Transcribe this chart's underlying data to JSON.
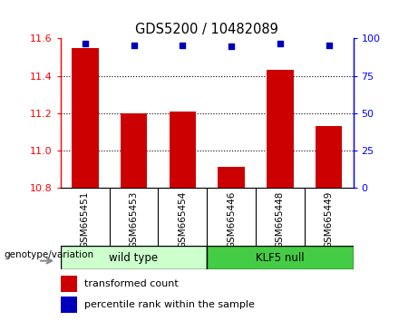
{
  "title": "GDS5200 / 10482089",
  "samples": [
    "GSM665451",
    "GSM665453",
    "GSM665454",
    "GSM665446",
    "GSM665448",
    "GSM665449"
  ],
  "bar_values": [
    11.55,
    11.2,
    11.21,
    10.91,
    11.43,
    11.13
  ],
  "percentile_values": [
    96.5,
    95.5,
    95.5,
    95.0,
    96.7,
    95.5
  ],
  "ylim_left": [
    10.8,
    11.6
  ],
  "ylim_right": [
    0,
    100
  ],
  "yticks_left": [
    10.8,
    11.0,
    11.2,
    11.4,
    11.6
  ],
  "yticks_right": [
    0,
    25,
    50,
    75,
    100
  ],
  "bar_color": "#cc0000",
  "percentile_color": "#0000bb",
  "wild_type_label": "wild type",
  "klf5_null_label": "KLF5 null",
  "wild_type_color": "#ccffcc",
  "klf5_null_color": "#44cc44",
  "genotype_label": "genotype/variation",
  "legend_bar_label": "transformed count",
  "legend_pct_label": "percentile rank within the sample",
  "xlabel_gray_bg": "#cccccc",
  "spine_box_color": "#000000",
  "grid_yticks": [
    11.0,
    11.2,
    11.4
  ]
}
